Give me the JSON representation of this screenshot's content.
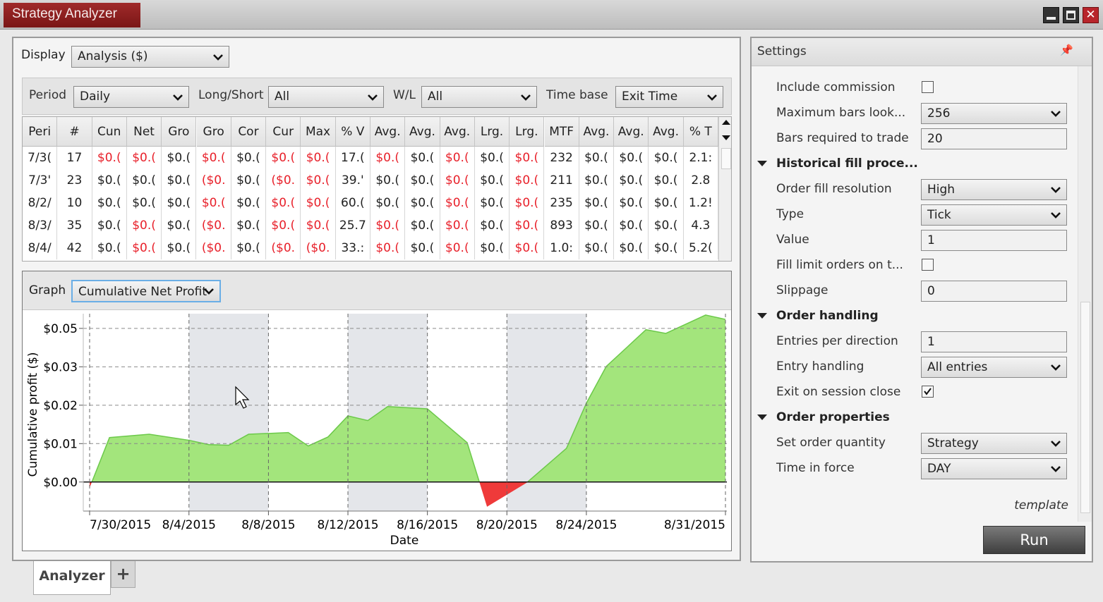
{
  "window": {
    "title": "Strategy Analyzer"
  },
  "display": {
    "label": "Display",
    "value": "Analysis ($)"
  },
  "filters": [
    {
      "label": "Period",
      "value": "Daily"
    },
    {
      "label": "Long/Short",
      "value": "All"
    },
    {
      "label": "W/L",
      "value": "All"
    },
    {
      "label": "Time base",
      "value": "Exit Time"
    }
  ],
  "table": {
    "columns": [
      "Peri",
      "#",
      "Cun",
      "Net",
      "Gro",
      "Gro",
      "Cor",
      "Cur",
      "Max",
      "% V",
      "Avg.",
      "Avg.",
      "Avg.",
      "Lrg.",
      "Lrg.",
      "MTF",
      "Avg.",
      "Avg.",
      "Avg.",
      "% T"
    ],
    "rows": [
      [
        "7/3(",
        "17",
        "$0.(",
        "$0.(",
        "$0.(",
        "$0.(",
        "$0.(",
        "$0.(",
        "$0.(",
        "17.(",
        "$0.(",
        "$0.(",
        "$0.(",
        "$0.(",
        "$0.(",
        "232",
        "$0.(",
        "$0.(",
        "$0.(",
        "2.1:"
      ],
      [
        "7/3'",
        "23",
        "$0.(",
        "$0.(",
        "$0.(",
        "($0.",
        "$0.(",
        "($0.",
        "$0.(",
        "39.'",
        "$0.(",
        "$0.(",
        "$0.(",
        "$0.(",
        "$0.(",
        "211",
        "$0.(",
        "$0.(",
        "$0.(",
        "2.8"
      ],
      [
        "8/2/",
        "10",
        "$0.(",
        "$0.(",
        "$0.(",
        "$0.(",
        "$0.(",
        "$0.(",
        "$0.(",
        "60.(",
        "$0.(",
        "$0.(",
        "$0.(",
        "$0.(",
        "$0.(",
        "235",
        "$0.(",
        "$0.(",
        "$0.(",
        "1.2!"
      ],
      [
        "8/3/",
        "35",
        "$0.(",
        "$0.(",
        "$0.(",
        "($0.",
        "$0.(",
        "$0.(",
        "$0.(",
        "25.7",
        "$0.(",
        "$0.(",
        "$0.(",
        "$0.(",
        "$0.(",
        "893",
        "$0.(",
        "$0.(",
        "$0.(",
        "4.3"
      ],
      [
        "8/4/",
        "42",
        "$0.(",
        "$0.(",
        "$0.(",
        "($0.",
        "$0.(",
        "($0.",
        "($0.",
        "33.:",
        "$0.(",
        "$0.(",
        "$0.(",
        "$0.(",
        "$0.(",
        "1.0:",
        "$0.(",
        "$0.(",
        "$0.(",
        "5.2("
      ]
    ],
    "red_cells": [
      [
        2,
        3,
        5,
        7,
        8,
        10,
        12,
        14
      ],
      [
        5,
        7,
        8,
        12,
        14
      ],
      [
        5,
        7,
        8,
        12,
        14
      ],
      [
        3,
        5,
        7,
        8,
        10,
        12,
        14
      ],
      [
        3,
        5,
        7,
        8,
        10,
        12,
        14
      ]
    ],
    "negative_color": "#e8202a"
  },
  "graph": {
    "label": "Graph",
    "value": "Cumulative Net Profit"
  },
  "chart_data": {
    "type": "area",
    "x": [
      "2015-07-30",
      "2015-07-31",
      "2015-08-02",
      "2015-08-04",
      "2015-08-05",
      "2015-08-06",
      "2015-08-07",
      "2015-08-09",
      "2015-08-10",
      "2015-08-11",
      "2015-08-12",
      "2015-08-13",
      "2015-08-14",
      "2015-08-16",
      "2015-08-18",
      "2015-08-19",
      "2015-08-21",
      "2015-08-23",
      "2015-08-24",
      "2015-08-25",
      "2015-08-27",
      "2015-08-28",
      "2015-08-30",
      "2015-08-31"
    ],
    "values": [
      -0.0017,
      0.0133,
      0.0143,
      0.0125,
      0.0112,
      0.011,
      0.0143,
      0.0148,
      0.0108,
      0.0135,
      0.0198,
      0.0184,
      0.0226,
      0.0219,
      0.0118,
      -0.0074,
      -0.0002,
      0.0101,
      0.0236,
      0.0346,
      0.0456,
      0.0445,
      0.05,
      0.0487
    ],
    "color": "#a3e57c",
    "line_color": "#6cc94a",
    "negative_color": "#ef3a3a",
    "xlim": [
      "2015-07-30",
      "2015-08-31"
    ],
    "xticks": [
      {
        "value": "2015-07-30",
        "label": "7/30/2015"
      },
      {
        "value": "2015-08-04",
        "label": "8/4/2015"
      },
      {
        "value": "2015-08-08",
        "label": "8/8/2015"
      },
      {
        "value": "2015-08-12",
        "label": "8/12/2015"
      },
      {
        "value": "2015-08-16",
        "label": "8/16/2015"
      },
      {
        "value": "2015-08-20",
        "label": "8/20/2015"
      },
      {
        "value": "2015-08-24",
        "label": "8/24/2015"
      },
      {
        "value": "2015-08-31",
        "label": "8/31/2015"
      }
    ],
    "ylim": [
      -0.0087,
      0.0504
    ],
    "yticks": [
      {
        "value": 0.046,
        "label": "$0.05"
      },
      {
        "value": 0.0345,
        "label": "$0.03"
      },
      {
        "value": 0.023,
        "label": "$0.02"
      },
      {
        "value": 0.0115,
        "label": "$0.01"
      },
      {
        "value": 0,
        "label": "$0.00"
      }
    ],
    "xlabel": "Date",
    "ylabel": "Cumulative profit ($)",
    "grid": true
  },
  "settings": {
    "title": "Settings",
    "items": [
      {
        "label": "Include commission",
        "checkbox": false
      },
      {
        "label": "Maximum bars look...",
        "select": "256"
      },
      {
        "label": "Bars required to trade",
        "input": "20"
      },
      {
        "section": "Historical fill proce..."
      },
      {
        "label": "Order fill resolution",
        "select": "High"
      },
      {
        "label": "Type",
        "select": "Tick"
      },
      {
        "label": "Value",
        "input": "1"
      },
      {
        "label": "Fill limit orders on t...",
        "checkbox": false
      },
      {
        "label": "Slippage",
        "input": "0"
      },
      {
        "section": "Order handling"
      },
      {
        "label": "Entries per direction",
        "input": "1"
      },
      {
        "label": "Entry handling",
        "select": "All entries"
      },
      {
        "label": "Exit on session close",
        "checkbox": true
      },
      {
        "section": "Order properties"
      },
      {
        "label": "Set order quantity",
        "select": "Strategy"
      },
      {
        "label": "Time in force",
        "select": "DAY"
      }
    ],
    "template": "template",
    "run": "Run"
  },
  "tabs": {
    "items": [
      "Analyzer"
    ],
    "add": "+"
  }
}
